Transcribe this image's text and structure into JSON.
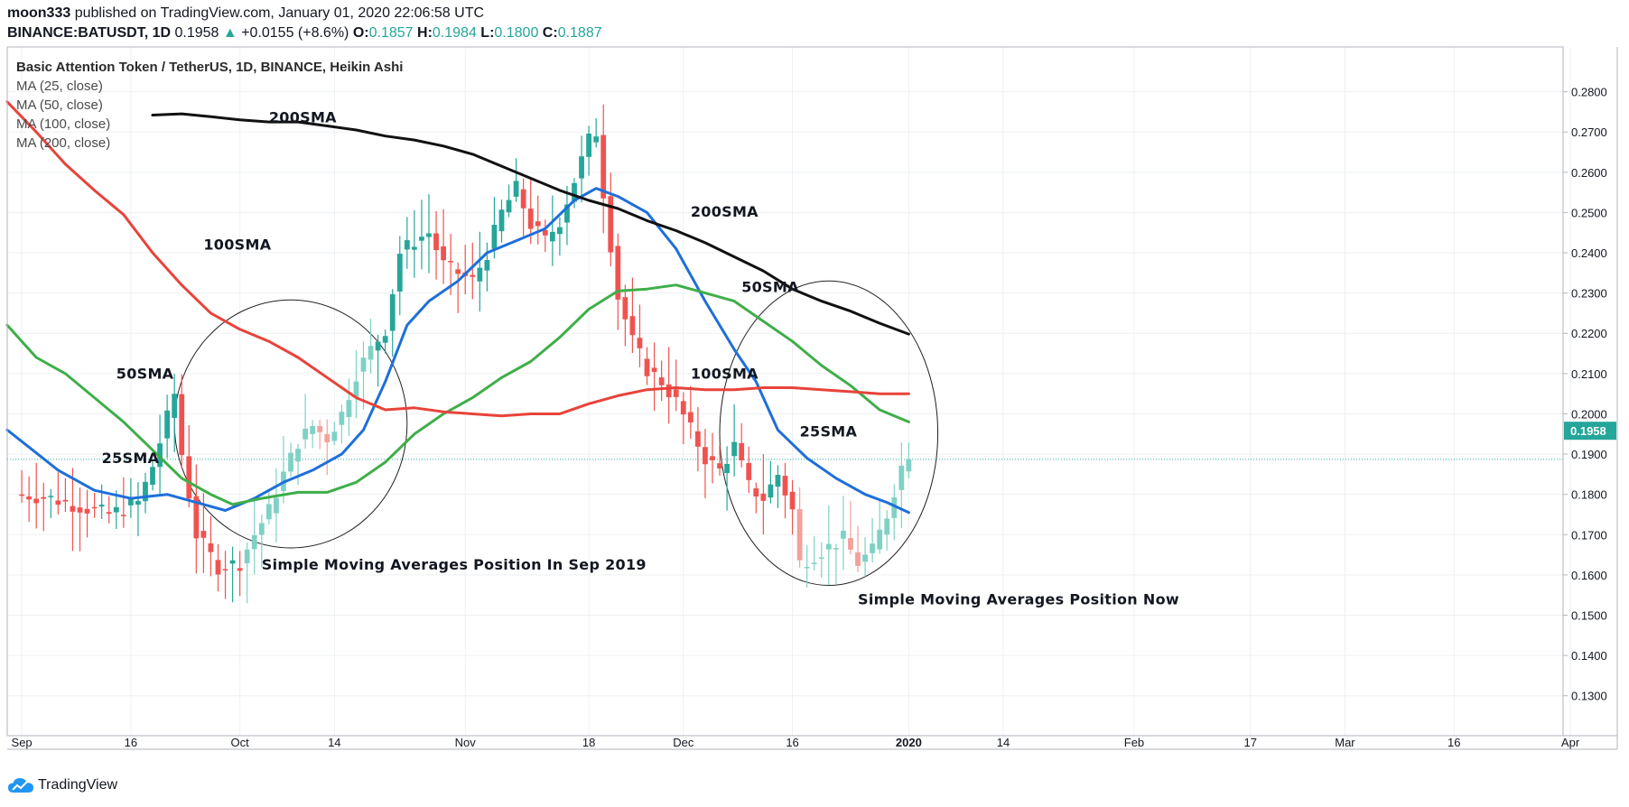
{
  "header": {
    "user": "moon333",
    "published_text": " published on TradingView.com, January 01, 2020 22:06:58 UTC",
    "symbol": "BINANCE:BATUSDT, 1D",
    "last": "0.1958",
    "change": "+0.0155 (+8.6%)",
    "o_label": "O:",
    "o": "0.1857",
    "h_label": "H:",
    "h": "0.1984",
    "l_label": "L:",
    "l": "0.1800",
    "c_label": "C:",
    "c": "0.1887"
  },
  "legend": {
    "title": "Basic Attention Token / TetherUS, 1D, BINANCE, Heikin Ashi",
    "ma25": "MA (25, close)",
    "ma50": "MA (50, close)",
    "ma100": "MA (100, close)",
    "ma200": "MA (200, close)"
  },
  "footer": {
    "logo_text": "TradingView"
  },
  "colors": {
    "up": "#26a69a",
    "down": "#ef5350",
    "ma25": "#1e6fd9",
    "ma50": "#3fae49",
    "ma100": "#e8433a",
    "ma200": "#111111",
    "price_tag": "#26a69a"
  },
  "chart_data": {
    "type": "candlestick",
    "chart_style": "Heikin Ashi",
    "title": "Basic Attention Token / TetherUS, 1D, BINANCE, Heikin Ashi",
    "ylim": [
      0.125,
      0.2835
    ],
    "y_ticks": [
      "0.2800",
      "0.2700",
      "0.2600",
      "0.2500",
      "0.2400",
      "0.2300",
      "0.2200",
      "0.2100",
      "0.2000",
      "0.1900",
      "0.1800",
      "0.1700",
      "0.1600",
      "0.1500",
      "0.1400",
      "0.1300"
    ],
    "y_tick_values": [
      0.28,
      0.27,
      0.26,
      0.25,
      0.24,
      0.23,
      0.22,
      0.21,
      0.2,
      0.19,
      0.18,
      0.17,
      0.16,
      0.15,
      0.14,
      0.13
    ],
    "last_price_label": "0.1958",
    "last_price": 0.1958,
    "dotted_line": 0.1887,
    "x_range_days": [
      -2,
      212
    ],
    "x_ticks": [
      {
        "label": "Sep",
        "day": 0,
        "bold": false
      },
      {
        "label": "16",
        "day": 15,
        "bold": false
      },
      {
        "label": "Oct",
        "day": 30,
        "bold": false
      },
      {
        "label": "14",
        "day": 43,
        "bold": false
      },
      {
        "label": "Nov",
        "day": 61,
        "bold": false
      },
      {
        "label": "18",
        "day": 78,
        "bold": false
      },
      {
        "label": "Dec",
        "day": 91,
        "bold": false
      },
      {
        "label": "16",
        "day": 106,
        "bold": false
      },
      {
        "label": "2020",
        "day": 122,
        "bold": true
      },
      {
        "label": "14",
        "day": 135,
        "bold": false
      },
      {
        "label": "Feb",
        "day": 153,
        "bold": false
      },
      {
        "label": "17",
        "day": 169,
        "bold": false
      },
      {
        "label": "Mar",
        "day": 182,
        "bold": false
      },
      {
        "label": "16",
        "day": 197,
        "bold": false
      },
      {
        "label": "Apr",
        "day": 213,
        "bold": false
      }
    ],
    "close_path": [
      [
        0,
        0.18
      ],
      [
        4,
        0.179
      ],
      [
        8,
        0.177
      ],
      [
        12,
        0.175
      ],
      [
        16,
        0.178
      ],
      [
        18,
        0.187
      ],
      [
        20,
        0.199
      ],
      [
        21,
        0.205
      ],
      [
        22,
        0.19
      ],
      [
        24,
        0.17
      ],
      [
        27,
        0.162
      ],
      [
        30,
        0.163
      ],
      [
        32,
        0.17
      ],
      [
        34,
        0.176
      ],
      [
        36,
        0.185
      ],
      [
        38,
        0.193
      ],
      [
        40,
        0.197
      ],
      [
        42,
        0.194
      ],
      [
        44,
        0.2
      ],
      [
        46,
        0.21
      ],
      [
        48,
        0.216
      ],
      [
        50,
        0.221
      ],
      [
        52,
        0.24
      ],
      [
        54,
        0.243
      ],
      [
        56,
        0.245
      ],
      [
        58,
        0.237
      ],
      [
        60,
        0.235
      ],
      [
        62,
        0.233
      ],
      [
        64,
        0.24
      ],
      [
        66,
        0.25
      ],
      [
        68,
        0.256
      ],
      [
        70,
        0.247
      ],
      [
        72,
        0.243
      ],
      [
        74,
        0.248
      ],
      [
        76,
        0.258
      ],
      [
        78,
        0.268
      ],
      [
        79,
        0.27
      ],
      [
        80,
        0.255
      ],
      [
        82,
        0.229
      ],
      [
        84,
        0.218
      ],
      [
        86,
        0.211
      ],
      [
        88,
        0.208
      ],
      [
        90,
        0.203
      ],
      [
        92,
        0.196
      ],
      [
        94,
        0.189
      ],
      [
        96,
        0.186
      ],
      [
        98,
        0.192
      ],
      [
        100,
        0.182
      ],
      [
        102,
        0.179
      ],
      [
        104,
        0.185
      ],
      [
        106,
        0.176
      ],
      [
        107,
        0.163
      ],
      [
        109,
        0.165
      ],
      [
        111,
        0.167
      ],
      [
        113,
        0.169
      ],
      [
        115,
        0.163
      ],
      [
        117,
        0.166
      ],
      [
        119,
        0.175
      ],
      [
        121,
        0.187
      ],
      [
        122,
        0.1887
      ]
    ],
    "series": [
      {
        "name": "MA (25, close)",
        "label": "25SMA",
        "color": "#1e6fd9",
        "points": [
          [
            -2,
            0.196
          ],
          [
            5,
            0.186
          ],
          [
            10,
            0.181
          ],
          [
            15,
            0.179
          ],
          [
            20,
            0.18
          ],
          [
            24,
            0.178
          ],
          [
            28,
            0.176
          ],
          [
            32,
            0.179
          ],
          [
            36,
            0.183
          ],
          [
            40,
            0.186
          ],
          [
            44,
            0.19
          ],
          [
            47,
            0.196
          ],
          [
            50,
            0.208
          ],
          [
            53,
            0.222
          ],
          [
            56,
            0.228
          ],
          [
            60,
            0.233
          ],
          [
            64,
            0.24
          ],
          [
            68,
            0.243
          ],
          [
            72,
            0.246
          ],
          [
            76,
            0.253
          ],
          [
            79,
            0.256
          ],
          [
            82,
            0.254
          ],
          [
            86,
            0.25
          ],
          [
            90,
            0.241
          ],
          [
            94,
            0.228
          ],
          [
            98,
            0.216
          ],
          [
            101,
            0.208
          ],
          [
            104,
            0.196
          ],
          [
            108,
            0.189
          ],
          [
            112,
            0.184
          ],
          [
            116,
            0.18
          ],
          [
            119,
            0.178
          ],
          [
            122,
            0.1755
          ]
        ]
      },
      {
        "name": "MA (50, close)",
        "label": "50SMA",
        "color": "#3fae49",
        "points": [
          [
            -2,
            0.222
          ],
          [
            2,
            0.214
          ],
          [
            6,
            0.21
          ],
          [
            10,
            0.204
          ],
          [
            14,
            0.198
          ],
          [
            18,
            0.191
          ],
          [
            22,
            0.184
          ],
          [
            26,
            0.18
          ],
          [
            29,
            0.1775
          ],
          [
            33,
            0.179
          ],
          [
            38,
            0.1805
          ],
          [
            42,
            0.1805
          ],
          [
            46,
            0.183
          ],
          [
            50,
            0.188
          ],
          [
            54,
            0.195
          ],
          [
            58,
            0.2
          ],
          [
            62,
            0.204
          ],
          [
            66,
            0.209
          ],
          [
            70,
            0.213
          ],
          [
            74,
            0.219
          ],
          [
            78,
            0.226
          ],
          [
            82,
            0.2305
          ],
          [
            86,
            0.231
          ],
          [
            90,
            0.232
          ],
          [
            94,
            0.23
          ],
          [
            98,
            0.228
          ],
          [
            102,
            0.223
          ],
          [
            106,
            0.218
          ],
          [
            110,
            0.212
          ],
          [
            114,
            0.207
          ],
          [
            118,
            0.201
          ],
          [
            122,
            0.198
          ]
        ]
      },
      {
        "name": "MA (100, close)",
        "label": "100SMA",
        "color": "#e8433a",
        "points": [
          [
            -2,
            0.2775
          ],
          [
            2,
            0.27
          ],
          [
            6,
            0.262
          ],
          [
            10,
            0.2555
          ],
          [
            14,
            0.2495
          ],
          [
            18,
            0.24
          ],
          [
            22,
            0.232
          ],
          [
            26,
            0.225
          ],
          [
            30,
            0.221
          ],
          [
            34,
            0.218
          ],
          [
            38,
            0.214
          ],
          [
            42,
            0.209
          ],
          [
            46,
            0.204
          ],
          [
            50,
            0.201
          ],
          [
            54,
            0.2015
          ],
          [
            58,
            0.2005
          ],
          [
            62,
            0.2
          ],
          [
            66,
            0.1995
          ],
          [
            70,
            0.2
          ],
          [
            74,
            0.2
          ],
          [
            78,
            0.2025
          ],
          [
            82,
            0.2045
          ],
          [
            86,
            0.206
          ],
          [
            90,
            0.2065
          ],
          [
            94,
            0.206
          ],
          [
            98,
            0.206
          ],
          [
            102,
            0.2065
          ],
          [
            106,
            0.2065
          ],
          [
            110,
            0.206
          ],
          [
            114,
            0.2055
          ],
          [
            118,
            0.205
          ],
          [
            122,
            0.205
          ]
        ]
      },
      {
        "name": "MA (200, close)",
        "label": "200SMA",
        "color": "#111111",
        "points": [
          [
            18,
            0.2742
          ],
          [
            22,
            0.2745
          ],
          [
            26,
            0.2738
          ],
          [
            30,
            0.273
          ],
          [
            34,
            0.2725
          ],
          [
            38,
            0.2725
          ],
          [
            42,
            0.2715
          ],
          [
            46,
            0.2705
          ],
          [
            50,
            0.269
          ],
          [
            54,
            0.268
          ],
          [
            58,
            0.2665
          ],
          [
            62,
            0.2645
          ],
          [
            66,
            0.2615
          ],
          [
            70,
            0.2585
          ],
          [
            74,
            0.2555
          ],
          [
            78,
            0.253
          ],
          [
            82,
            0.251
          ],
          [
            86,
            0.248
          ],
          [
            90,
            0.2455
          ],
          [
            94,
            0.2425
          ],
          [
            98,
            0.239
          ],
          [
            102,
            0.2355
          ],
          [
            106,
            0.231
          ],
          [
            110,
            0.228
          ],
          [
            114,
            0.2255
          ],
          [
            118,
            0.2225
          ],
          [
            122,
            0.2198
          ]
        ]
      }
    ],
    "annotations": [
      {
        "text": "200SMA",
        "day": 34,
        "price": 0.2724
      },
      {
        "text": "100SMA",
        "day": 25,
        "price": 0.2408
      },
      {
        "text": "50SMA",
        "day": 13,
        "price": 0.2087
      },
      {
        "text": "25SMA",
        "day": 11,
        "price": 0.1878
      },
      {
        "text": "200SMA",
        "day": 92,
        "price": 0.249
      },
      {
        "text": "50SMA",
        "day": 99,
        "price": 0.2303
      },
      {
        "text": "100SMA",
        "day": 92,
        "price": 0.2087
      },
      {
        "text": "25SMA",
        "day": 107,
        "price": 0.1944
      },
      {
        "text": "Simple Moving Averages Position In Sep 2019",
        "day": 33,
        "price": 0.1613
      },
      {
        "text": "Simple Moving Averages Position Now",
        "day": 115,
        "price": 0.1527
      }
    ],
    "ellipses": [
      {
        "label": "Sep 2019 ellipse",
        "day_center": 37,
        "price_center": 0.1975,
        "day_radius": 16,
        "price_radius": 0.0308
      },
      {
        "label": "Now ellipse",
        "day_center": 111,
        "price_center": 0.1952,
        "day_radius": 15,
        "price_radius": 0.0378
      }
    ]
  }
}
